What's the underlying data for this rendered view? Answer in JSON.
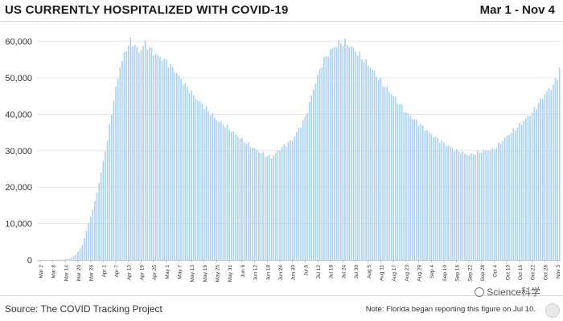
{
  "header": {
    "title": "US CURRENTLY HOSPITALIZED WITH COVID-19",
    "date_range": "Mar 1 - Nov 4"
  },
  "footer": {
    "source": "Source: The COVID Tracking Project",
    "note": "Note: Florida began reporting this figure on Jul 10."
  },
  "watermark": {
    "text": "Science科学",
    "icon": "wechat-icon"
  },
  "colors": {
    "bar": "#a9d1f4",
    "grid": "#e4e4e4",
    "text": "#333333",
    "rule": "#d8d8d8"
  },
  "chart_data": {
    "type": "bar",
    "title": "US CURRENTLY HOSPITALIZED WITH COVID-19",
    "start_date": "2020-03-01",
    "end_date": "2020-11-04",
    "y_tick_labels": [
      "0",
      "10,000",
      "20,000",
      "30,000",
      "40,000",
      "50,000",
      "60,000"
    ],
    "y_ticks": [
      0,
      10000,
      20000,
      30000,
      40000,
      50000,
      60000
    ],
    "ylim": [
      0,
      63000
    ],
    "x_tick_labels": [
      "Mar 2",
      "Mar 8",
      "Mar 14",
      "Mar 20",
      "Mar 26",
      "Apr 1",
      "Apr 7",
      "Apr 13",
      "Apr 19",
      "Apr 25",
      "May 1",
      "May 7",
      "May 13",
      "May 19",
      "May 25",
      "May 31",
      "Jun 6",
      "Jun 12",
      "Jun 18",
      "Jun 24",
      "Jun 30",
      "Jul 6",
      "Jul 12",
      "Jul 18",
      "Jul 24",
      "Jul 30",
      "Aug 5",
      "Aug 11",
      "Aug 17",
      "Aug 23",
      "Aug 29",
      "Sep 4",
      "Sep 10",
      "Sep 16",
      "Sep 22",
      "Sep 28",
      "Oct 4",
      "Oct 10",
      "Oct 16",
      "Oct 22",
      "Oct 28",
      "Nov 3"
    ],
    "grid": true,
    "legend": "none",
    "keypoints": [
      [
        "2020-03-01",
        0
      ],
      [
        "2020-03-12",
        0
      ],
      [
        "2020-03-16",
        300
      ],
      [
        "2020-03-19",
        1500
      ],
      [
        "2020-03-22",
        4000
      ],
      [
        "2020-03-25",
        10000
      ],
      [
        "2020-03-28",
        16000
      ],
      [
        "2020-03-31",
        24000
      ],
      [
        "2020-04-03",
        33000
      ],
      [
        "2020-04-06",
        44000
      ],
      [
        "2020-04-09",
        53000
      ],
      [
        "2020-04-12",
        58000
      ],
      [
        "2020-04-14",
        60000
      ],
      [
        "2020-04-16",
        59000
      ],
      [
        "2020-04-18",
        57000
      ],
      [
        "2020-04-21",
        59500
      ],
      [
        "2020-04-24",
        57500
      ],
      [
        "2020-04-27",
        56000
      ],
      [
        "2020-05-01",
        54500
      ],
      [
        "2020-05-05",
        52000
      ],
      [
        "2020-05-10",
        48000
      ],
      [
        "2020-05-15",
        44500
      ],
      [
        "2020-05-20",
        41500
      ],
      [
        "2020-05-25",
        38500
      ],
      [
        "2020-05-31",
        36000
      ],
      [
        "2020-06-06",
        33000
      ],
      [
        "2020-06-12",
        30500
      ],
      [
        "2020-06-17",
        28800
      ],
      [
        "2020-06-20",
        28200
      ],
      [
        "2020-06-24",
        30500
      ],
      [
        "2020-06-30",
        33000
      ],
      [
        "2020-07-06",
        39000
      ],
      [
        "2020-07-10",
        47000
      ],
      [
        "2020-07-14",
        54000
      ],
      [
        "2020-07-18",
        57500
      ],
      [
        "2020-07-22",
        59500
      ],
      [
        "2020-07-25",
        59800
      ],
      [
        "2020-07-29",
        58000
      ],
      [
        "2020-08-02",
        55500
      ],
      [
        "2020-08-06",
        53000
      ],
      [
        "2020-08-11",
        49000
      ],
      [
        "2020-08-17",
        45000
      ],
      [
        "2020-08-23",
        40500
      ],
      [
        "2020-08-29",
        37500
      ],
      [
        "2020-09-04",
        34500
      ],
      [
        "2020-09-10",
        32000
      ],
      [
        "2020-09-16",
        30000
      ],
      [
        "2020-09-22",
        28800
      ],
      [
        "2020-09-28",
        29800
      ],
      [
        "2020-10-04",
        30500
      ],
      [
        "2020-10-10",
        34000
      ],
      [
        "2020-10-16",
        37000
      ],
      [
        "2020-10-22",
        40500
      ],
      [
        "2020-10-28",
        45500
      ],
      [
        "2020-11-01",
        48000
      ],
      [
        "2020-11-03",
        50500
      ],
      [
        "2020-11-04",
        52500
      ]
    ]
  }
}
